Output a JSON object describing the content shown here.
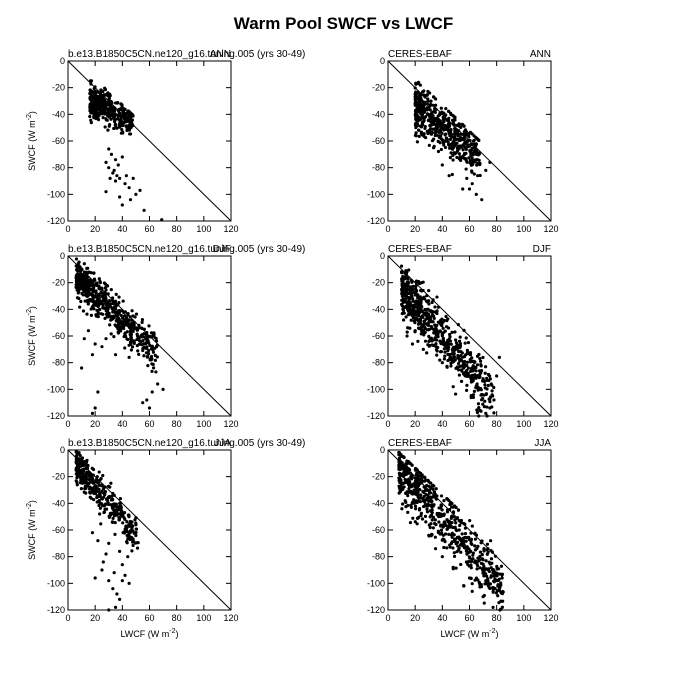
{
  "title": "Warm Pool SWCF vs LWCF",
  "chart_data": [
    {
      "type": "scatter",
      "id": "model-ann",
      "left_label": "b.e13.B1850C5CN.ne120_g16.tuning.005 (yrs 30-49)",
      "right_label": "ANN",
      "ylabel": "SWCF (W m^-2)",
      "xlabel": "",
      "xlim": [
        0,
        120
      ],
      "ylim": [
        -120,
        0
      ],
      "xticks": [
        0,
        20,
        40,
        60,
        80,
        100,
        120
      ],
      "yticks": [
        0,
        -20,
        -40,
        -60,
        -80,
        -100,
        -120
      ],
      "reference_line": [
        [
          0,
          0
        ],
        [
          120,
          -120
        ]
      ],
      "cloud": {
        "n": 420,
        "x": [
          16,
          48
        ],
        "y0": -24,
        "slope": -0.42,
        "spread": 6
      },
      "points": [
        [
          30,
          -66
        ],
        [
          32,
          -70
        ],
        [
          35,
          -74
        ],
        [
          28,
          -76
        ],
        [
          30,
          -80
        ],
        [
          33,
          -84
        ],
        [
          36,
          -86
        ],
        [
          38,
          -88
        ],
        [
          42,
          -92
        ],
        [
          45,
          -95
        ],
        [
          28,
          -98
        ],
        [
          38,
          -102
        ],
        [
          46,
          -104
        ],
        [
          50,
          -100
        ],
        [
          53,
          -97
        ],
        [
          40,
          -108
        ],
        [
          56,
          -112
        ],
        [
          69,
          -119
        ],
        [
          34,
          -82
        ],
        [
          37,
          -78
        ],
        [
          40,
          -72
        ],
        [
          35,
          -90
        ],
        [
          43,
          -86
        ],
        [
          48,
          -88
        ],
        [
          31,
          -88
        ]
      ]
    },
    {
      "type": "scatter",
      "id": "ceres-ann",
      "left_label": "CERES-EBAF",
      "right_label": "ANN",
      "ylabel": "",
      "xlabel": "",
      "xlim": [
        0,
        120
      ],
      "ylim": [
        -120,
        0
      ],
      "xticks": [
        0,
        20,
        40,
        60,
        80,
        100,
        120
      ],
      "yticks": [
        0,
        -20,
        -40,
        -60,
        -80,
        -100,
        -120
      ],
      "reference_line": [
        [
          0,
          0
        ],
        [
          120,
          -120
        ]
      ],
      "cloud": {
        "n": 520,
        "x": [
          20,
          68
        ],
        "y0": -20,
        "slope": -0.74,
        "spread": 9
      },
      "points": [
        [
          26,
          -36
        ],
        [
          24,
          -38
        ],
        [
          58,
          -88
        ],
        [
          62,
          -92
        ],
        [
          66,
          -86
        ],
        [
          65,
          -100
        ],
        [
          69,
          -104
        ],
        [
          72,
          -82
        ],
        [
          75,
          -76
        ],
        [
          55,
          -96
        ],
        [
          60,
          -96
        ],
        [
          34,
          -64
        ],
        [
          40,
          -78
        ],
        [
          45,
          -86
        ]
      ]
    },
    {
      "type": "scatter",
      "id": "model-djf",
      "left_label": "b.e13.B1850C5CN.ne120_g16.tuning.005 (yrs 30-49)",
      "right_label": "DJF",
      "ylabel": "SWCF (W m^-2)",
      "xlabel": "",
      "xlim": [
        0,
        120
      ],
      "ylim": [
        -120,
        0
      ],
      "xticks": [
        0,
        20,
        40,
        60,
        80,
        100,
        120
      ],
      "yticks": [
        0,
        -20,
        -40,
        -60,
        -80,
        -100,
        -120
      ],
      "reference_line": [
        [
          0,
          0
        ],
        [
          120,
          -120
        ]
      ],
      "cloud": {
        "n": 560,
        "x": [
          6,
          66
        ],
        "y0": -10,
        "slope": -0.98,
        "spread": 8
      },
      "points": [
        [
          10,
          -84
        ],
        [
          18,
          -74
        ],
        [
          20,
          -66
        ],
        [
          22,
          -102
        ],
        [
          20,
          -114
        ],
        [
          18,
          -118
        ],
        [
          25,
          -68
        ],
        [
          28,
          -62
        ],
        [
          35,
          -74
        ],
        [
          55,
          -110
        ],
        [
          58,
          -108
        ],
        [
          62,
          -102
        ],
        [
          66,
          -96
        ],
        [
          60,
          -114
        ],
        [
          70,
          -100
        ],
        [
          45,
          -76
        ],
        [
          12,
          -62
        ],
        [
          15,
          -56
        ]
      ]
    },
    {
      "type": "scatter",
      "id": "ceres-djf",
      "left_label": "CERES-EBAF",
      "right_label": "DJF",
      "ylabel": "",
      "xlabel": "",
      "xlim": [
        0,
        120
      ],
      "ylim": [
        -120,
        0
      ],
      "xticks": [
        0,
        20,
        40,
        60,
        80,
        100,
        120
      ],
      "yticks": [
        0,
        -20,
        -40,
        -60,
        -80,
        -100,
        -120
      ],
      "reference_line": [
        [
          0,
          0
        ],
        [
          120,
          -120
        ]
      ],
      "cloud": {
        "n": 620,
        "x": [
          10,
          78
        ],
        "y0": -12,
        "slope": -1.2,
        "spread": 10
      },
      "points": [
        [
          14,
          -60
        ],
        [
          18,
          -66
        ],
        [
          22,
          -64
        ],
        [
          26,
          -70
        ],
        [
          20,
          -56
        ],
        [
          75,
          -114
        ],
        [
          72,
          -118
        ],
        [
          78,
          -108
        ],
        [
          76,
          -96
        ],
        [
          70,
          -92
        ],
        [
          80,
          -90
        ],
        [
          82,
          -76
        ],
        [
          40,
          -80
        ],
        [
          48,
          -98
        ]
      ]
    },
    {
      "type": "scatter",
      "id": "model-jja",
      "left_label": "b.e13.B1850C5CN.ne120_g16.tuning.005 (yrs 30-49)",
      "right_label": "JJA",
      "ylabel": "SWCF (W m^-2)",
      "xlabel": "LWCF (W m^-2)",
      "xlim": [
        0,
        120
      ],
      "ylim": [
        -120,
        0
      ],
      "xticks": [
        0,
        20,
        40,
        60,
        80,
        100,
        120
      ],
      "yticks": [
        0,
        -20,
        -40,
        -60,
        -80,
        -100,
        -120
      ],
      "reference_line": [
        [
          0,
          0
        ],
        [
          120,
          -120
        ]
      ],
      "cloud": {
        "n": 380,
        "x": [
          6,
          52
        ],
        "y0": -4,
        "slope": -1.2,
        "spread": 7
      },
      "points": [
        [
          20,
          -96
        ],
        [
          25,
          -90
        ],
        [
          28,
          -78
        ],
        [
          30,
          -98
        ],
        [
          33,
          -104
        ],
        [
          36,
          -108
        ],
        [
          38,
          -112
        ],
        [
          35,
          -118
        ],
        [
          30,
          -120
        ],
        [
          40,
          -98
        ],
        [
          42,
          -94
        ],
        [
          45,
          -100
        ],
        [
          22,
          -68
        ],
        [
          26,
          -84
        ],
        [
          18,
          -62
        ],
        [
          40,
          -86
        ],
        [
          34,
          -92
        ],
        [
          38,
          -76
        ],
        [
          30,
          -70
        ],
        [
          44,
          -80
        ]
      ]
    },
    {
      "type": "scatter",
      "id": "ceres-jja",
      "left_label": "CERES-EBAF",
      "right_label": "JJA",
      "ylabel": "",
      "xlabel": "LWCF (W m^-2)",
      "xlim": [
        0,
        120
      ],
      "ylim": [
        -120,
        0
      ],
      "xticks": [
        0,
        20,
        40,
        60,
        80,
        100,
        120
      ],
      "yticks": [
        0,
        -20,
        -40,
        -60,
        -80,
        -100,
        -120
      ],
      "reference_line": [
        [
          0,
          0
        ],
        [
          120,
          -120
        ]
      ],
      "cloud": {
        "n": 640,
        "x": [
          8,
          85
        ],
        "y0": -4,
        "slope": -1.18,
        "spread": 11
      },
      "points": [
        [
          10,
          -12
        ],
        [
          12,
          -16
        ],
        [
          30,
          -64
        ],
        [
          35,
          -74
        ],
        [
          40,
          -80
        ],
        [
          48,
          -88
        ],
        [
          62,
          -106
        ],
        [
          70,
          -110
        ],
        [
          82,
          -104
        ],
        [
          84,
          -96
        ],
        [
          72,
          -98
        ],
        [
          60,
          -96
        ]
      ]
    }
  ]
}
